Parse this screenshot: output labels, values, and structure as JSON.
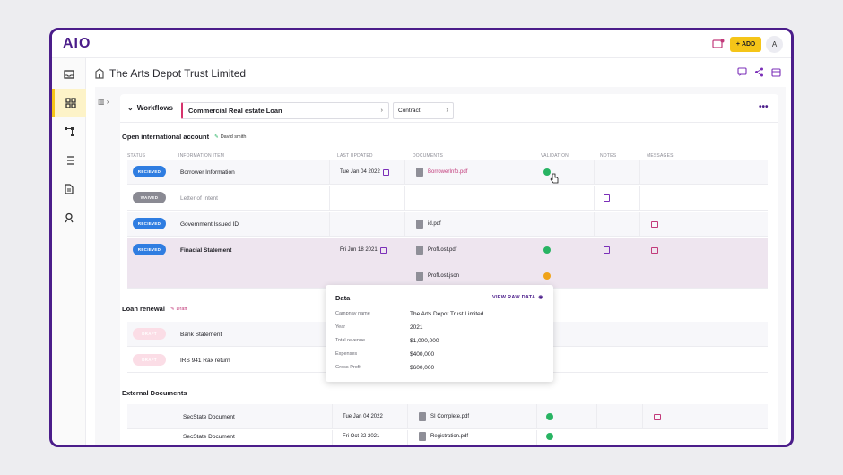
{
  "app": {
    "logo": "AIO",
    "add_label": "ADD",
    "avatar": "A"
  },
  "sidebar": {
    "items": [
      {
        "icon": "inbox-icon"
      },
      {
        "icon": "dashboard-icon",
        "active": true
      },
      {
        "icon": "workflow-icon"
      },
      {
        "icon": "list-icon"
      },
      {
        "icon": "document-icon"
      },
      {
        "icon": "user-badge-icon"
      }
    ]
  },
  "header": {
    "title": "The Arts Depot Trust Limited"
  },
  "workflows": {
    "label": "Workflows",
    "selected": "Commercial Real estate Loan",
    "secondary": "Contract"
  },
  "columns": [
    "STATUS",
    "INFORMATION ITEM",
    "LAST UPDATED",
    "DOCUMENTS",
    "VALIDATION",
    "NOTES",
    "MESSAGES"
  ],
  "section1": {
    "title": "Open international account",
    "tag": "David smith",
    "rows": [
      {
        "status": "RECIEVED",
        "item": "Borrower Information",
        "updated": "Tue Jan 04 2022",
        "doc": "BorrowerInfo.pdf"
      },
      {
        "status": "WAIVED",
        "item": "Letter of Intent",
        "updated": "",
        "doc": ""
      },
      {
        "status": "RECIEVED",
        "item": "Government Issued ID",
        "updated": "",
        "doc": "id.pdf"
      },
      {
        "status": "RECIEVED",
        "item": "Finacial Statement",
        "updated": "Fri Jun 18 2021",
        "doc": "ProfLost.pdf",
        "doc2": "ProfLost.json"
      }
    ]
  },
  "section2": {
    "title": "Loan renewal",
    "tag": "Draft",
    "rows": [
      {
        "status": "DRAFT",
        "item": "Bank Statement"
      },
      {
        "status": "DRAFT",
        "item": "IRS 941 Rax return"
      }
    ]
  },
  "section3": {
    "title": "External Documents",
    "rows": [
      {
        "item": "SecState Document",
        "updated": "Tue Jan 04 2022",
        "doc": "SI Complete.pdf"
      },
      {
        "item": "SecState Document",
        "updated": "Fri Oct 22 2021",
        "doc": "Registration.pdf"
      }
    ]
  },
  "popup": {
    "title": "Data",
    "link": "VIEW RAW DATA",
    "fields": [
      {
        "label": "Campnay name",
        "value": "The Arts Depot Trust Limited"
      },
      {
        "label": "Year",
        "value": "2021"
      },
      {
        "label": "Total revenue",
        "value": "$1,000,000"
      },
      {
        "label": "Expenses",
        "value": "$400,000"
      },
      {
        "label": "Gross Profit",
        "value": "$600,000"
      }
    ]
  },
  "colors": {
    "accent": "#4b1d8a",
    "yellow": "#f5c518",
    "received": "#2f7de1",
    "pink": "#c23a7a",
    "valid": "#28b463"
  }
}
